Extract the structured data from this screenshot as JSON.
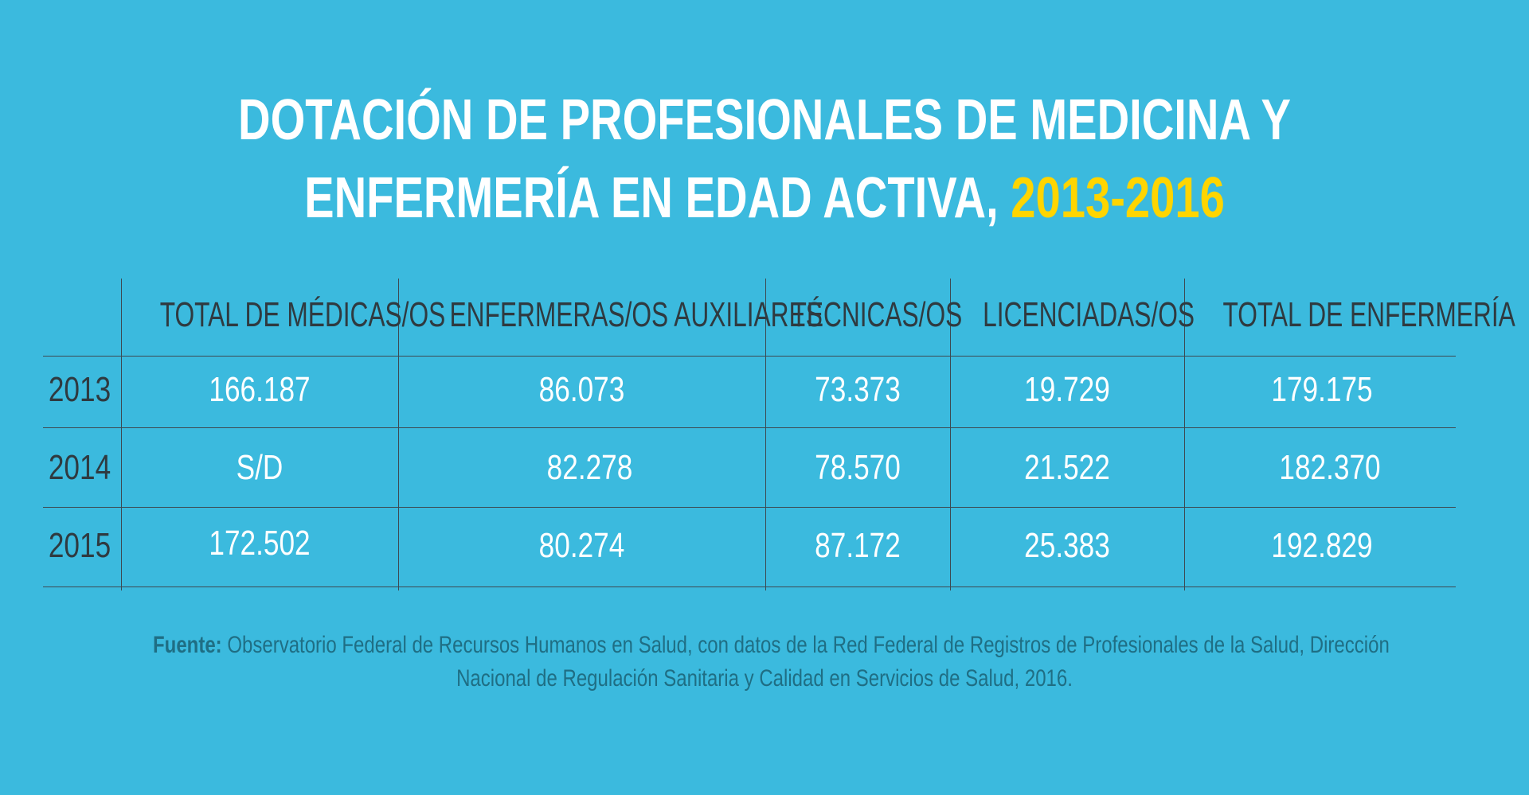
{
  "title": {
    "line1": "DOTACIÓN DE PROFESIONALES DE MEDICINA Y",
    "line2_main": "ENFERMERÍA EN EDAD ACTIVA,",
    "line2_highlight": "2013-2016"
  },
  "colors": {
    "background": "#3bbade",
    "title": "#ffffff",
    "highlight": "#ffd500",
    "header_text": "#2f3a40",
    "cell_text": "#ffffff",
    "source_text": "#1f6e84"
  },
  "chart_data": {
    "type": "table",
    "columns": [
      "TOTAL DE MÉDICAS/OS",
      "ENFERMERAS/OS AUXILIARES",
      "TÉCNICAS/OS",
      "LICENCIADAS/OS",
      "TOTAL DE ENFERMERÍA"
    ],
    "rows": [
      {
        "year": "2013",
        "values": [
          "166.187",
          "86.073",
          "73.373",
          "19.729",
          "179.175"
        ]
      },
      {
        "year": "2014",
        "values": [
          "S/D",
          "82.278",
          "78.570",
          "21.522",
          "182.370"
        ]
      },
      {
        "year": "2015",
        "values": [
          "172.502",
          "80.274",
          "87.172",
          "25.383",
          "192.829"
        ]
      }
    ]
  },
  "source": {
    "label": "Fuente:",
    "line1": "Observatorio Federal de Recursos Humanos en Salud, con datos de la Red Federal de Registros de Profesionales de la Salud, Dirección",
    "line2": "Nacional de Regulación Sanitaria y Calidad en Servicios de Salud, 2016."
  }
}
